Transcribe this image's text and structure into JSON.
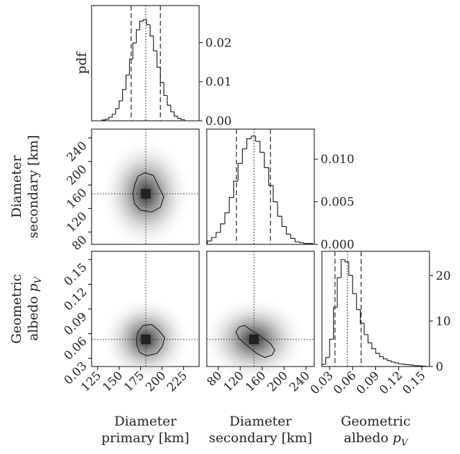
{
  "chart_data": {
    "type": "corner",
    "pdf_label": "pdf",
    "variables": [
      {
        "label": {
          "lines": [
            "Diameter",
            "primary [km]"
          ]
        },
        "lim": [
          118,
          243
        ],
        "ticks": [
          125,
          150,
          175,
          200,
          225
        ],
        "bins": [
          130,
          134,
          138,
          142,
          146,
          150,
          154,
          158,
          162,
          166,
          170,
          174,
          178,
          182,
          186,
          190,
          194,
          198,
          202,
          206,
          210,
          214,
          218,
          222,
          226
        ],
        "counts": [
          0.0002,
          0.0004,
          0.0009,
          0.0017,
          0.0031,
          0.0051,
          0.008,
          0.0117,
          0.0158,
          0.0199,
          0.0233,
          0.0255,
          0.0259,
          0.0246,
          0.0217,
          0.0179,
          0.0137,
          0.0098,
          0.0065,
          0.004,
          0.0023,
          0.0012,
          0.0006,
          0.0003
        ],
        "quantiles": [
          164,
          181,
          198
        ],
        "hist_ylim": [
          0,
          0.0295
        ],
        "hist_yticks": [
          {
            "value": 0,
            "label": "0.00"
          },
          {
            "value": 0.01,
            "label": "0.01"
          },
          {
            "value": 0.02,
            "label": "0.02"
          }
        ]
      },
      {
        "label": {
          "lines": [
            "Diameter",
            "secondary [km]"
          ]
        },
        "lim": [
          59,
          255
        ],
        "ticks": [
          80,
          120,
          160,
          200,
          240
        ],
        "bins": [
          60,
          68,
          76,
          84,
          92,
          100,
          108,
          116,
          124,
          132,
          140,
          148,
          156,
          164,
          172,
          180,
          188,
          196,
          204,
          212,
          220,
          228,
          236,
          244,
          252
        ],
        "counts": [
          0.0004,
          0.0008,
          0.0014,
          0.0024,
          0.0037,
          0.0055,
          0.0074,
          0.0095,
          0.0112,
          0.0124,
          0.0127,
          0.0121,
          0.0108,
          0.009,
          0.0069,
          0.005,
          0.0033,
          0.0021,
          0.0012,
          0.0007,
          0.0003,
          0.0002,
          0.0001,
          0.0001
        ],
        "quantiles": [
          113,
          145,
          175
        ],
        "hist_ylim": [
          0,
          0.01352
        ],
        "hist_yticks": [
          {
            "value": 0,
            "label": "0.000"
          },
          {
            "value": 0.005,
            "label": "0.005"
          },
          {
            "value": 0.01,
            "label": "0.010"
          }
        ]
      },
      {
        "label": {
          "lines": [
            "Geometric",
            "albedo"
          ],
          "symbol": "p",
          "subscript": "V"
        },
        "lim": [
          0.02,
          0.16
        ],
        "ticks": [
          0.03,
          0.06,
          0.09,
          0.12,
          0.15
        ],
        "bins": [
          0.02,
          0.025,
          0.03,
          0.035,
          0.04,
          0.045,
          0.05,
          0.055,
          0.06,
          0.065,
          0.07,
          0.075,
          0.08,
          0.085,
          0.09,
          0.095,
          0.1,
          0.105,
          0.11,
          0.115,
          0.12,
          0.125,
          0.13,
          0.135,
          0.14,
          0.145,
          0.15,
          0.155
        ],
        "counts": [
          0.5,
          2,
          6,
          13,
          19.5,
          23.5,
          23,
          20,
          16,
          12.5,
          9.5,
          7,
          5.2,
          3.9,
          2.9,
          2.2,
          1.7,
          1.3,
          1,
          0.8,
          0.6,
          0.5,
          0.4,
          0.3,
          0.2,
          0.15,
          0.1
        ],
        "quantiles": [
          0.037,
          0.053,
          0.071
        ],
        "hist_ylim": [
          0,
          25.3
        ],
        "hist_yticks": [
          0,
          10,
          20
        ]
      }
    ],
    "pairs": [
      {
        "x": 0,
        "y": 1,
        "contour": {
          "x": [
            166,
            168,
            172,
            180,
            190,
            195,
            202,
            198,
            188,
            175,
            168
          ],
          "y": [
            145,
            160,
            175,
            181,
            176,
            160,
            140,
            122,
            114,
            117,
            128
          ]
        }
      },
      {
        "x": 0,
        "y": 2,
        "contour": {
          "x": [
            170,
            172,
            178,
            188,
            196,
            203,
            200,
            194,
            182,
            174,
            171
          ],
          "y": [
            0.052,
            0.062,
            0.07,
            0.071,
            0.064,
            0.055,
            0.044,
            0.036,
            0.033,
            0.037,
            0.045
          ]
        }
      },
      {
        "x": 1,
        "y": 2,
        "contour": {
          "x": [
            112,
            118,
            128,
            140,
            155,
            175,
            183,
            178,
            165,
            150,
            135,
            118
          ],
          "y": [
            0.062,
            0.068,
            0.07,
            0.064,
            0.058,
            0.048,
            0.04,
            0.034,
            0.031,
            0.036,
            0.044,
            0.054
          ]
        }
      }
    ]
  }
}
